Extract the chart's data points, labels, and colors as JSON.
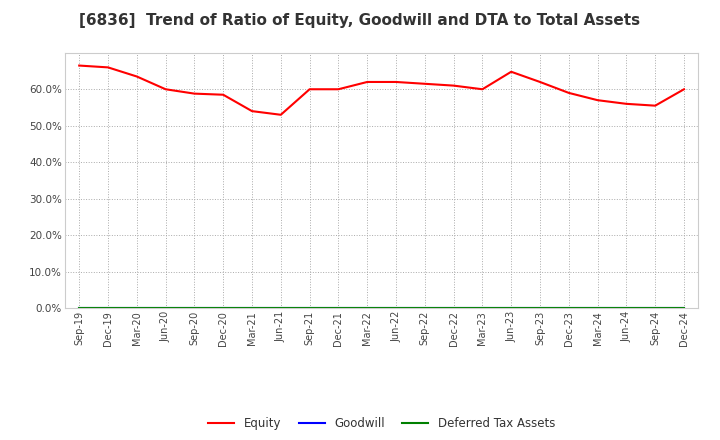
{
  "title": "[6836]  Trend of Ratio of Equity, Goodwill and DTA to Total Assets",
  "x_labels": [
    "Sep-19",
    "Dec-19",
    "Mar-20",
    "Jun-20",
    "Sep-20",
    "Dec-20",
    "Mar-21",
    "Jun-21",
    "Sep-21",
    "Dec-21",
    "Mar-22",
    "Jun-22",
    "Sep-22",
    "Dec-22",
    "Mar-23",
    "Jun-23",
    "Sep-23",
    "Dec-23",
    "Mar-24",
    "Jun-24",
    "Sep-24",
    "Dec-24"
  ],
  "equity": [
    0.665,
    0.66,
    0.635,
    0.6,
    0.588,
    0.585,
    0.54,
    0.53,
    0.6,
    0.6,
    0.62,
    0.62,
    0.615,
    0.61,
    0.6,
    0.648,
    0.62,
    0.59,
    0.57,
    0.56,
    0.555,
    0.6
  ],
  "goodwill": [
    0.0,
    0.0,
    0.0,
    0.0,
    0.0,
    0.0,
    0.0,
    0.0,
    0.0,
    0.0,
    0.0,
    0.0,
    0.0,
    0.0,
    0.0,
    0.0,
    0.0,
    0.0,
    0.0,
    0.0,
    0.0,
    0.0
  ],
  "dta": [
    0.0,
    0.0,
    0.0,
    0.0,
    0.0,
    0.0,
    0.0,
    0.0,
    0.0,
    0.0,
    0.0,
    0.0,
    0.0,
    0.0,
    0.0,
    0.0,
    0.0,
    0.0,
    0.0,
    0.0,
    0.0,
    0.0
  ],
  "equity_color": "#ff0000",
  "goodwill_color": "#0000ff",
  "dta_color": "#008000",
  "ylim": [
    0.0,
    0.7
  ],
  "yticks": [
    0.0,
    0.1,
    0.2,
    0.3,
    0.4,
    0.5,
    0.6
  ],
  "background_color": "#ffffff",
  "grid_color": "#aaaaaa",
  "title_fontsize": 11,
  "legend_labels": [
    "Equity",
    "Goodwill",
    "Deferred Tax Assets"
  ]
}
